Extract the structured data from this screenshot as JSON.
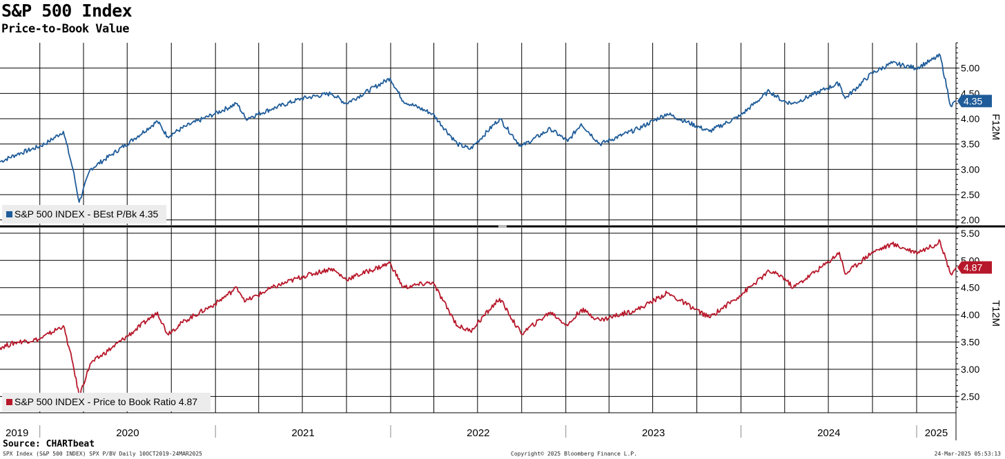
{
  "header": {
    "title": "S&P 500 Index",
    "subtitle": "Price-to-Book Value"
  },
  "footer": {
    "source": "Source: CHARTbeat",
    "left": "SPX Index (S&P 500 INDEX) SPX P/BV  Daily 10OCT2019-24MAR2025",
    "center": "Copyright© 2025 Bloomberg Finance L.P.",
    "right": "24-Mar-2025 05:53:13"
  },
  "colors": {
    "top_series": "#1f5c99",
    "bottom_series": "#b7172a",
    "grid": "#000000",
    "legend_bg": "#ececec"
  },
  "chart_data": [
    {
      "type": "line",
      "panel": "top",
      "side_label": "F12M",
      "ylim": [
        1.9,
        5.5
      ],
      "yticks": [
        2.0,
        2.5,
        3.0,
        3.5,
        4.0,
        4.5,
        5.0
      ],
      "ytick_labels": [
        "2.00",
        "2.50",
        "3.00",
        "3.50",
        "4.00",
        "4.50",
        "5.00"
      ],
      "grid": true,
      "legend_placement": "bottom-left",
      "last_value_label": "4.35",
      "series": [
        {
          "name": "S&P 500 INDEX - BEst P/Bk 4.35",
          "color": "#1f5c99",
          "x": [
            "2019-10-10",
            "2019-11-15",
            "2019-12-31",
            "2020-01-20",
            "2020-02-19",
            "2020-03-10",
            "2020-03-23",
            "2020-04-15",
            "2020-05-31",
            "2020-07-15",
            "2020-09-02",
            "2020-09-23",
            "2020-10-31",
            "2020-12-31",
            "2021-02-15",
            "2021-03-05",
            "2021-04-30",
            "2021-06-30",
            "2021-08-31",
            "2021-09-30",
            "2021-12-31",
            "2022-01-27",
            "2022-03-29",
            "2022-05-20",
            "2022-06-16",
            "2022-08-16",
            "2022-09-30",
            "2022-11-30",
            "2023-01-05",
            "2023-02-02",
            "2023-03-13",
            "2023-05-31",
            "2023-07-31",
            "2023-10-27",
            "2023-12-29",
            "2024-02-29",
            "2024-03-28",
            "2024-04-19",
            "2024-06-28",
            "2024-07-24",
            "2024-08-05",
            "2024-09-30",
            "2024-11-11",
            "2024-12-31",
            "2025-01-31",
            "2025-02-19",
            "2025-03-13",
            "2025-03-24"
          ],
          "values": [
            3.15,
            3.3,
            3.45,
            3.55,
            3.75,
            3.0,
            2.35,
            3.0,
            3.3,
            3.6,
            3.95,
            3.65,
            3.85,
            4.1,
            4.3,
            4.0,
            4.2,
            4.4,
            4.5,
            4.3,
            4.8,
            4.35,
            4.1,
            3.5,
            3.4,
            4.0,
            3.45,
            3.8,
            3.55,
            3.9,
            3.5,
            3.8,
            4.1,
            3.75,
            4.05,
            4.55,
            4.35,
            4.3,
            4.6,
            4.7,
            4.4,
            4.9,
            5.1,
            5.0,
            5.15,
            5.25,
            4.25,
            4.35
          ]
        }
      ]
    },
    {
      "type": "line",
      "panel": "bottom",
      "side_label": "T12M",
      "ylim": [
        2.2,
        5.6
      ],
      "yticks": [
        2.5,
        3.0,
        3.5,
        4.0,
        4.5,
        5.0,
        5.5
      ],
      "ytick_labels": [
        "2.50",
        "3.00",
        "3.50",
        "4.00",
        "4.50",
        "5.00",
        "5.50"
      ],
      "grid": true,
      "legend_placement": "bottom-left",
      "last_value_label": "4.87",
      "series": [
        {
          "name": "S&P 500 INDEX - Price to Book Ratio 4.87",
          "color": "#b7172a",
          "x": [
            "2019-10-10",
            "2019-11-15",
            "2019-12-31",
            "2020-01-20",
            "2020-02-19",
            "2020-03-10",
            "2020-03-23",
            "2020-04-15",
            "2020-05-31",
            "2020-07-15",
            "2020-09-02",
            "2020-09-23",
            "2020-10-31",
            "2020-12-31",
            "2021-02-15",
            "2021-03-05",
            "2021-04-30",
            "2021-06-30",
            "2021-08-31",
            "2021-09-30",
            "2021-12-31",
            "2022-01-27",
            "2022-03-29",
            "2022-05-20",
            "2022-06-16",
            "2022-08-16",
            "2022-09-30",
            "2022-11-30",
            "2023-01-05",
            "2023-02-02",
            "2023-03-13",
            "2023-05-31",
            "2023-07-31",
            "2023-10-27",
            "2023-12-29",
            "2024-02-29",
            "2024-03-28",
            "2024-04-19",
            "2024-06-28",
            "2024-07-24",
            "2024-08-05",
            "2024-09-30",
            "2024-11-11",
            "2024-12-31",
            "2025-01-31",
            "2025-02-19",
            "2025-03-13",
            "2025-03-24"
          ],
          "values": [
            3.4,
            3.5,
            3.55,
            3.65,
            3.8,
            3.1,
            2.5,
            3.1,
            3.4,
            3.7,
            4.05,
            3.65,
            3.9,
            4.2,
            4.5,
            4.25,
            4.5,
            4.7,
            4.85,
            4.65,
            4.95,
            4.5,
            4.6,
            3.8,
            3.7,
            4.3,
            3.65,
            4.05,
            3.8,
            4.1,
            3.9,
            4.1,
            4.4,
            3.95,
            4.35,
            4.8,
            4.7,
            4.5,
            4.95,
            5.15,
            4.75,
            5.15,
            5.3,
            5.15,
            5.25,
            5.35,
            4.75,
            4.87
          ]
        }
      ]
    }
  ],
  "x_axis": {
    "start": "2019-10-10",
    "end": "2025-03-24",
    "year_labels": [
      "2019",
      "2020",
      "2021",
      "2022",
      "2023",
      "2024",
      "2025"
    ]
  }
}
